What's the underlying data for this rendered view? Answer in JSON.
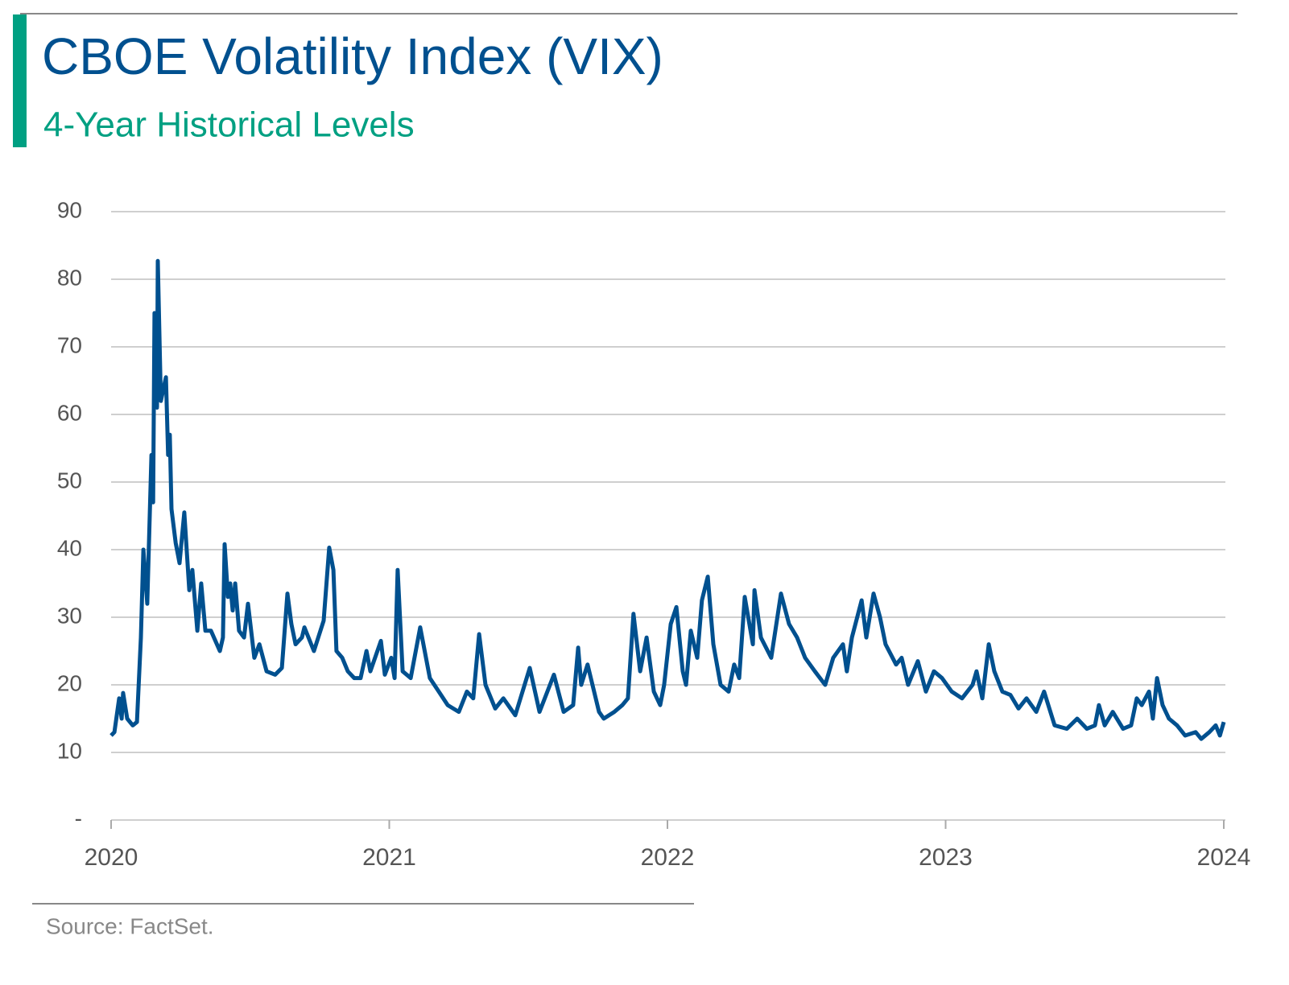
{
  "chart_data": {
    "type": "line",
    "title": "CBOE Volatility Index (VIX)",
    "subtitle": "4-Year Historical Levels",
    "source": "Source: FactSet.",
    "color": "#00508f",
    "grid": true,
    "xlim": [
      2020,
      2024
    ],
    "xticks": [
      2020,
      2021,
      2022,
      2023,
      2024
    ],
    "ylim": [
      0,
      90
    ],
    "yticks": [
      {
        "value": 0,
        "label": "-"
      },
      10,
      20,
      30,
      40,
      50,
      60,
      70,
      80,
      90
    ],
    "x": [
      2020.0,
      2020.012,
      2020.029,
      2020.038,
      2020.043,
      2020.058,
      2020.078,
      2020.093,
      2020.107,
      2020.116,
      2020.13,
      2020.145,
      2020.151,
      2020.156,
      2020.165,
      2020.168,
      2020.179,
      2020.197,
      2020.205,
      2020.211,
      2020.217,
      2020.232,
      2020.246,
      2020.263,
      2020.281,
      2020.292,
      2020.31,
      2020.324,
      2020.339,
      2020.359,
      2020.391,
      2020.402,
      2020.408,
      2020.42,
      2020.428,
      2020.437,
      2020.446,
      2020.46,
      2020.478,
      2020.492,
      2020.515,
      2020.533,
      2020.559,
      2020.59,
      2020.614,
      2020.634,
      2020.648,
      2020.663,
      2020.686,
      2020.695,
      2020.729,
      2020.764,
      2020.784,
      2020.799,
      2020.81,
      2020.831,
      2020.851,
      2020.874,
      2020.897,
      2020.918,
      2020.932,
      2020.97,
      2020.984,
      2021.007,
      2021.019,
      2021.03,
      2021.048,
      2021.077,
      2021.111,
      2021.146,
      2021.178,
      2021.21,
      2021.25,
      2021.279,
      2021.302,
      2021.323,
      2021.346,
      2021.381,
      2021.41,
      2021.453,
      2021.505,
      2021.54,
      2021.592,
      2021.627,
      2021.661,
      2021.679,
      2021.69,
      2021.713,
      2021.754,
      2021.771,
      2021.809,
      2021.838,
      2021.858,
      2021.878,
      2021.902,
      2021.925,
      2021.951,
      2021.974,
      2021.988,
      2022.012,
      2022.032,
      2022.055,
      2022.067,
      2022.084,
      2022.107,
      2022.124,
      2022.145,
      2022.165,
      2022.191,
      2022.22,
      2022.24,
      2022.258,
      2022.278,
      2022.307,
      2022.313,
      2022.336,
      2022.373,
      2022.408,
      2022.437,
      2022.466,
      2022.495,
      2022.53,
      2022.567,
      2022.596,
      2022.631,
      2022.645,
      2022.663,
      2022.698,
      2022.715,
      2022.741,
      2022.764,
      2022.784,
      2022.822,
      2022.842,
      2022.865,
      2022.9,
      2022.929,
      2022.958,
      2022.987,
      2023.022,
      2023.059,
      2023.097,
      2023.111,
      2023.132,
      2023.155,
      2023.175,
      2023.204,
      2023.233,
      2023.262,
      2023.291,
      2023.326,
      2023.354,
      2023.392,
      2023.436,
      2023.473,
      2023.508,
      2023.537,
      2023.551,
      2023.572,
      2023.601,
      2023.638,
      2023.667,
      2023.687,
      2023.705,
      2023.731,
      2023.745,
      2023.76,
      2023.78,
      2023.803,
      2023.832,
      2023.861,
      2023.899,
      2023.919,
      2023.948,
      2023.971,
      2023.986,
      2024.0
    ],
    "values": [
      12.5,
      13,
      18,
      15,
      18.8,
      15,
      14,
      14.5,
      27,
      40,
      32,
      54,
      47,
      75,
      61,
      82.7,
      62,
      65.5,
      54,
      57,
      46,
      41,
      38,
      45.5,
      34,
      37,
      28,
      35,
      28,
      28,
      25,
      27,
      40.8,
      33,
      35,
      31,
      35,
      28,
      27,
      32,
      24,
      26,
      22,
      21.5,
      22.5,
      33.5,
      29,
      26,
      27,
      28.5,
      25,
      29.5,
      40.3,
      37,
      25,
      24,
      22,
      21,
      21,
      25,
      22,
      26.5,
      21.5,
      24,
      21,
      37,
      22,
      21,
      28.5,
      21,
      19,
      17,
      16,
      19,
      18,
      27.5,
      20,
      16.5,
      18,
      15.5,
      22.5,
      16,
      21.5,
      16,
      17,
      25.5,
      20,
      23,
      16,
      15,
      16,
      17,
      18,
      30.5,
      22,
      27,
      19,
      17,
      20,
      29,
      31.5,
      22,
      20,
      28,
      24,
      32.5,
      36,
      26,
      20,
      19,
      23,
      21,
      33,
      26,
      34,
      27,
      24,
      33.5,
      29,
      27,
      24,
      22,
      20,
      24,
      26,
      22,
      27,
      32.5,
      27,
      33.5,
      30,
      26,
      23,
      24,
      20,
      23.5,
      19,
      22,
      21,
      19,
      18,
      20,
      22,
      18,
      26,
      22,
      19,
      18.5,
      16.5,
      18,
      16,
      19,
      14,
      13.5,
      15,
      13.5,
      14,
      17,
      14,
      16,
      13.5,
      14,
      18,
      17,
      19,
      15,
      21,
      17,
      15,
      14,
      12.5,
      13,
      12,
      13,
      14,
      12.5,
      14.5
    ]
  }
}
